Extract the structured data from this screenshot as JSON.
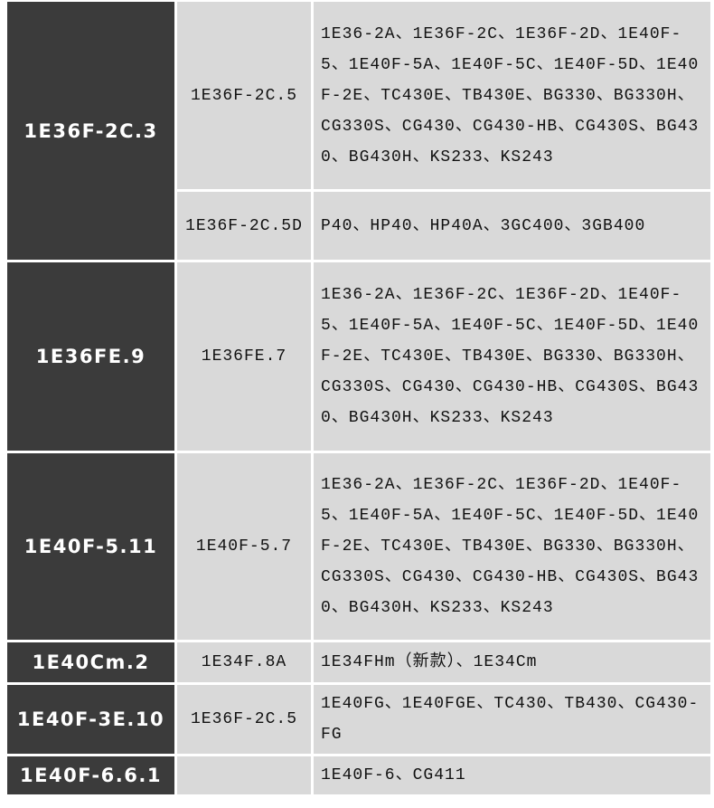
{
  "table": {
    "rows": [
      {
        "model": "1E36F-2C.3",
        "items": [
          {
            "engine": "1E36F-2C.5",
            "compatible": "1E36-2A、1E36F-2C、1E36F-2D、1E40F-5、1E40F-5A、1E40F-5C、1E40F-5D、1E40F-2E、TC430E、TB430E、BG330、BG330H、CG330S、CG430、CG430-HB、CG430S、BG430、BG430H、KS233、KS243"
          },
          {
            "engine": "1E36F-2C.5D",
            "compatible": "P40、HP40、HP40A、3GC400、3GB400"
          }
        ]
      },
      {
        "model": "1E36FE.9",
        "items": [
          {
            "engine": "1E36FE.7",
            "compatible": "1E36-2A、1E36F-2C、1E36F-2D、1E40F-5、1E40F-5A、1E40F-5C、1E40F-5D、1E40F-2E、TC430E、TB430E、BG330、BG330H、CG330S、CG430、CG430-HB、CG430S、BG430、BG430H、KS233、KS243"
          }
        ]
      },
      {
        "model": "1E40F-5.11",
        "items": [
          {
            "engine": "1E40F-5.7",
            "compatible": "1E36-2A、1E36F-2C、1E36F-2D、1E40F-5、1E40F-5A、1E40F-5C、1E40F-5D、1E40F-2E、TC430E、TB430E、BG330、BG330H、CG330S、CG430、CG430-HB、CG430S、BG430、BG430H、KS233、KS243"
          }
        ]
      },
      {
        "model": "1E40Cm.2",
        "items": [
          {
            "engine": "1E34F.8A",
            "compatible": "1E34FHm（新款）、1E34Cm"
          }
        ]
      },
      {
        "model": "1E40F-3E.10",
        "items": [
          {
            "engine": "1E36F-2C.5",
            "compatible": "1E40FG、1E40FGE、TC430、TB430、CG430-FG"
          }
        ]
      },
      {
        "model": "1E40F-6.6.1",
        "items": [
          {
            "compatible": "1E40F-6、CG411"
          }
        ]
      }
    ]
  }
}
